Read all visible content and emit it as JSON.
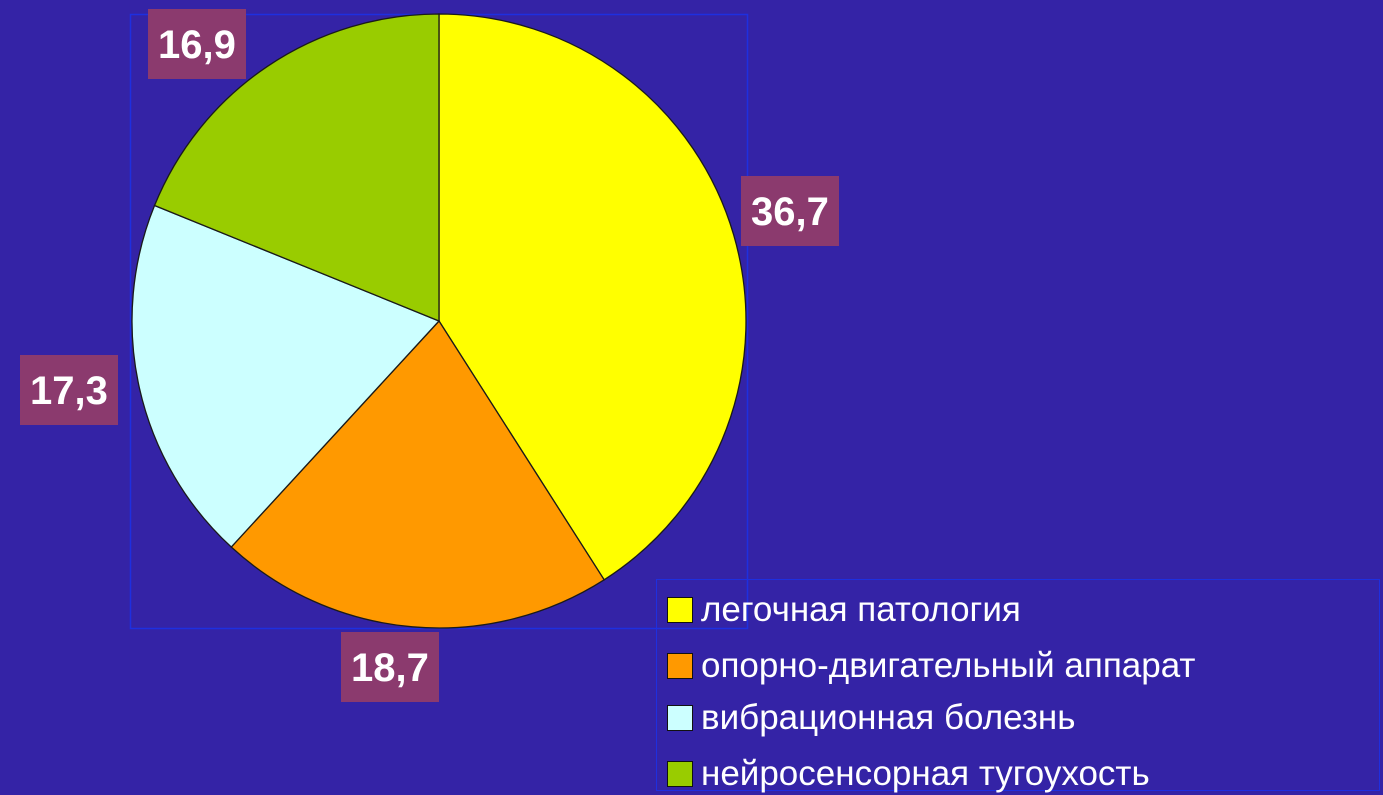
{
  "chart_data": {
    "type": "pie",
    "series": [
      {
        "categories": [
          "легочная патология",
          "опорно-двигательный аппарат",
          "вибрационная болезнь",
          "нейросенсорная тугоухость"
        ],
        "values": [
          36.7,
          18.7,
          17.3,
          16.9
        ],
        "value_labels": [
          "36,7",
          "18,7",
          "17,3",
          "16,9"
        ]
      }
    ],
    "colors": [
      "#ffff00",
      "#ff9900",
      "#ccffff",
      "#99cc00"
    ],
    "start_angle_deg": 0,
    "direction": "clockwise",
    "legend_position": "bottom-right",
    "title": ""
  },
  "style": {
    "background": "#3423a6",
    "label_background": "#8b3a6e",
    "label_text_color": "#ffffff",
    "legend_text_color": "#ffffff",
    "plot_border_color": "#1e2fe0"
  }
}
